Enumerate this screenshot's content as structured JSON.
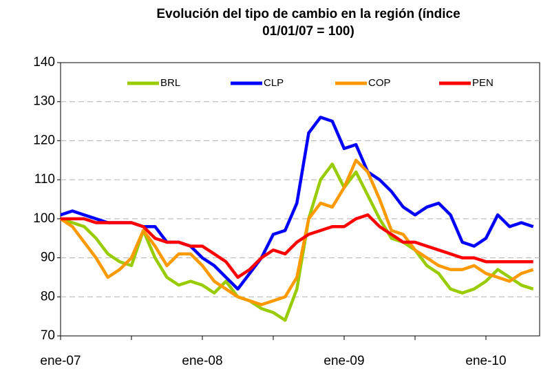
{
  "chart_data": {
    "type": "line",
    "title": "Evolución del tipo de cambio en la región (índice 01/01/07 = 100)",
    "categories": [
      "ene-07",
      null,
      null,
      null,
      null,
      null,
      null,
      null,
      null,
      null,
      null,
      null,
      "ene-08",
      null,
      null,
      null,
      null,
      null,
      null,
      null,
      null,
      null,
      null,
      null,
      "ene-09",
      null,
      null,
      null,
      null,
      null,
      null,
      null,
      null,
      null,
      null,
      null,
      "ene-10",
      null,
      null,
      null,
      null
    ],
    "series": [
      {
        "name": "BRL",
        "color": "#99cc00",
        "values": [
          100,
          99,
          98,
          95,
          91,
          89,
          88,
          97,
          90,
          85,
          83,
          84,
          83,
          81,
          84,
          80,
          79,
          77,
          76,
          74,
          82,
          100,
          110,
          114,
          108,
          112,
          106,
          100,
          95,
          94,
          92,
          88,
          86,
          82,
          81,
          82,
          84,
          87,
          85,
          83,
          82
        ]
      },
      {
        "name": "CLP",
        "color": "#0000ff",
        "values": [
          101,
          102,
          101,
          100,
          99,
          99,
          99,
          98,
          98,
          94,
          94,
          93,
          90,
          88,
          85,
          82,
          86,
          90,
          96,
          97,
          104,
          122,
          126,
          125,
          118,
          119,
          112,
          110,
          107,
          103,
          101,
          103,
          104,
          101,
          94,
          93,
          95,
          101,
          98,
          99,
          98
        ]
      },
      {
        "name": "COP",
        "color": "#ff9900",
        "values": [
          100,
          98,
          94,
          90,
          85,
          87,
          90,
          97,
          93,
          88,
          91,
          91,
          88,
          84,
          82,
          80,
          79,
          78,
          79,
          80,
          85,
          100,
          104,
          103,
          108,
          115,
          112,
          105,
          97,
          96,
          92,
          90,
          88,
          87,
          87,
          88,
          86,
          85,
          84,
          86,
          87
        ]
      },
      {
        "name": "PEN",
        "color": "#ff0000",
        "values": [
          100,
          100,
          100,
          99,
          99,
          99,
          99,
          98,
          95,
          94,
          94,
          93,
          93,
          91,
          89,
          85,
          87,
          90,
          92,
          91,
          94,
          96,
          97,
          98,
          98,
          100,
          101,
          98,
          96,
          94,
          94,
          93,
          92,
          91,
          90,
          90,
          89,
          89,
          89,
          89,
          89
        ]
      }
    ],
    "ylim": [
      70,
      140
    ],
    "yticks": [
      70,
      80,
      90,
      100,
      110,
      120,
      130,
      140
    ],
    "grid": true,
    "legend": "top"
  }
}
